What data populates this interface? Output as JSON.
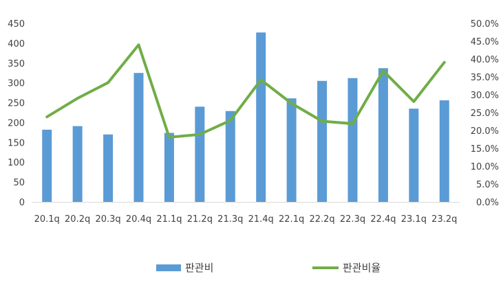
{
  "chart_data": {
    "type": "bar",
    "categories": [
      "20.1q",
      "20.2q",
      "20.3q",
      "20.4q",
      "21.1q",
      "21.2q",
      "21.3q",
      "21.4q",
      "22.1q",
      "22.2q",
      "22.3q",
      "22.4q",
      "23.1q",
      "23.2q"
    ],
    "series": [
      {
        "name": "판관비",
        "type": "bar",
        "axis": "left",
        "color": "#5B9BD5",
        "values": [
          182,
          191,
          170,
          325,
          174,
          240,
          229,
          427,
          261,
          305,
          312,
          337,
          235,
          256
        ]
      },
      {
        "name": "판관비율",
        "type": "line",
        "axis": "right",
        "color": "#70AD47",
        "values": [
          0.238,
          0.29,
          0.334,
          0.44,
          0.181,
          0.189,
          0.228,
          0.342,
          0.276,
          0.226,
          0.219,
          0.367,
          0.281,
          0.391
        ]
      }
    ],
    "y_left": {
      "min": 0,
      "max": 450,
      "step": 50,
      "ticks": [
        "0",
        "50",
        "100",
        "150",
        "200",
        "250",
        "300",
        "350",
        "400",
        "450"
      ]
    },
    "y_right": {
      "min": 0,
      "max": 0.5,
      "step": 0.05,
      "ticks": [
        "0.0%",
        "5.0%",
        "10.0%",
        "15.0%",
        "20.0%",
        "25.0%",
        "30.0%",
        "35.0%",
        "40.0%",
        "45.0%",
        "50.0%"
      ]
    },
    "grid": false,
    "legend": "bottom",
    "title": "",
    "xlabel": "",
    "ylabel": ""
  }
}
